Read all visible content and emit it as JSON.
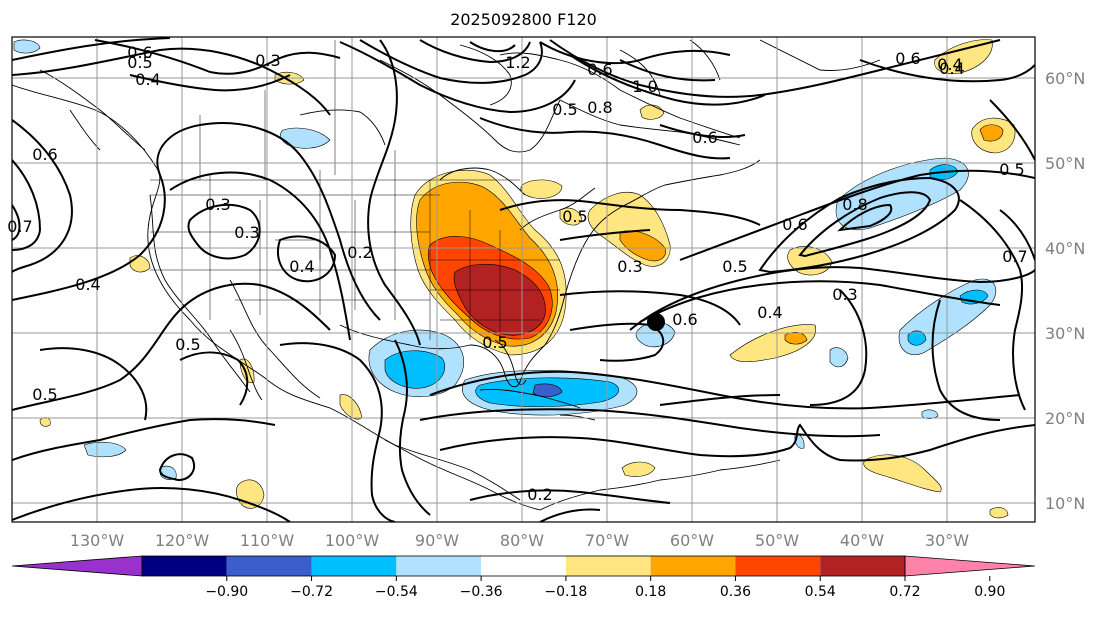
{
  "title": "2025092800 F120",
  "lon_labels": [
    "130°W",
    "120°W",
    "110°W",
    "100°W",
    "90°W",
    "80°W",
    "70°W",
    "60°W",
    "50°W",
    "40°W",
    "30°W"
  ],
  "lat_labels": [
    "10°N",
    "20°N",
    "30°N",
    "40°N",
    "50°N",
    "60°N"
  ],
  "colorbar": {
    "ticks": [
      "−0.90",
      "−0.72",
      "−0.54",
      "−0.36",
      "−0.18",
      "0.18",
      "0.36",
      "0.54",
      "0.72",
      "0.90"
    ],
    "colors": [
      "#9932cc",
      "#000080",
      "#3a5fcd",
      "#00bfff",
      "#b0e2ff",
      "#ffffff",
      "#ffe680",
      "#ffa500",
      "#ff4500",
      "#b22222",
      "#ff82ab"
    ]
  },
  "contour_labels": [
    "0.6",
    "0.5",
    "0.4",
    "0.3",
    "1.2",
    "1.0",
    "0.8",
    "0.6",
    "0.5",
    "0.6",
    "0.4",
    "0.4",
    "0.5",
    "0.6",
    "0.7",
    "0.3",
    "0.3",
    "0.4",
    "0.2",
    "0.5",
    "0.5",
    "0.3",
    "0.8",
    "0.6",
    "0.7",
    "0.5",
    "0.4",
    "0.6",
    "0.3",
    "0.5",
    "0.6",
    "0.5",
    "0.4",
    "0.2"
  ],
  "colors": {
    "contour": "#000000",
    "grid": "#999999",
    "axis_label": "#808080"
  }
}
